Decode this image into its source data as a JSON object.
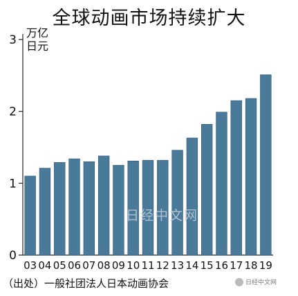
{
  "chart_data": {
    "type": "bar",
    "title": "全球动画市场持续扩大",
    "unit_lines": [
      "万亿",
      "日元"
    ],
    "categories": [
      "03",
      "04",
      "05",
      "06",
      "07",
      "08",
      "09",
      "10",
      "11",
      "12",
      "13",
      "14",
      "15",
      "16",
      "17",
      "18",
      "19"
    ],
    "values": [
      1.1,
      1.21,
      1.29,
      1.34,
      1.3,
      1.38,
      1.25,
      1.31,
      1.32,
      1.32,
      1.46,
      1.63,
      1.82,
      1.99,
      2.15,
      2.18,
      2.51
    ],
    "ylim": [
      0,
      3
    ],
    "yticks": [
      0,
      1,
      2,
      3
    ],
    "grid": false,
    "bar_color": "#4a7a9a",
    "source": "（出处）一般社团法人日本动画协会"
  },
  "watermark": {
    "center_text": "日经中文网",
    "badge_text": "日经中文网"
  }
}
